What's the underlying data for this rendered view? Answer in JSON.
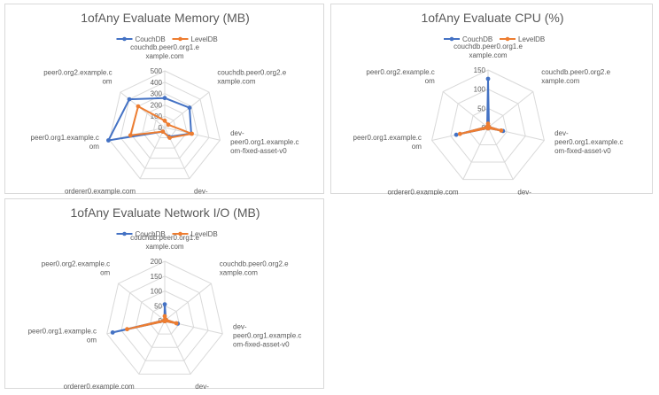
{
  "chart_data": [
    {
      "type": "radar",
      "title": "1ofAny Evaluate Memory (MB)",
      "categories": [
        "couchdb.peer0.org1.example.com",
        "couchdb.peer0.org2.example.com",
        "dev-peer0.org1.example.com-fixed-asset-v0",
        "dev-peer0.org2.example.com-fixed-asset-v0",
        "orderer0.example.com",
        "peer0.org1.example.com",
        "peer0.org2.example.com"
      ],
      "category_lines": [
        [
          "couchdb.peer0.org1.e",
          "xample.com"
        ],
        [
          "couchdb.peer0.org2.e",
          "xample.com"
        ],
        [
          "dev-",
          "peer0.org1.example.c",
          "om-fixed-asset-v0"
        ],
        [
          "dev-",
          "peer0.org2.example.c",
          "om-fixed-asset-v0"
        ],
        [
          "orderer0.example.com"
        ],
        [
          "peer0.org1.example.c",
          "om"
        ],
        [
          "peer0.org2.example.c",
          "om"
        ]
      ],
      "ticks": [
        "0",
        "100",
        "200",
        "300",
        "400",
        "500"
      ],
      "rmax": 500,
      "legend_position": "top",
      "series": [
        {
          "name": "CouchDB",
          "color": "#4472C4",
          "values": [
            260,
            280,
            240,
            90,
            40,
            510,
            400
          ]
        },
        {
          "name": "LevelDB",
          "color": "#ED7D31",
          "values": [
            60,
            40,
            245,
            100,
            40,
            310,
            300
          ]
        }
      ]
    },
    {
      "type": "radar",
      "title": "1ofAny Evaluate CPU (%)",
      "categories": [
        "couchdb.peer0.org1.example.com",
        "couchdb.peer0.org2.example.com",
        "dev-peer0.org1.example.com-fixed-asset-v0",
        "dev-peer0.org2.example.com-fixed-asset-v0",
        "orderer0.example.com",
        "peer0.org1.example.com",
        "peer0.org2.example.com"
      ],
      "category_lines": [
        [
          "couchdb.peer0.org1.e",
          "xample.com"
        ],
        [
          "couchdb.peer0.org2.e",
          "xample.com"
        ],
        [
          "dev-",
          "peer0.org1.example.c",
          "om-fixed-asset-v0"
        ],
        [
          "dev-",
          "peer0.org2.example.c",
          "om-fixed-asset-v0"
        ],
        [
          "orderer0.example.com"
        ],
        [
          "peer0.org1.example.c",
          "om"
        ],
        [
          "peer0.org2.example.c",
          "om"
        ]
      ],
      "ticks": [
        "0",
        "50",
        "100",
        "150"
      ],
      "rmax": 150,
      "legend_position": "top",
      "series": [
        {
          "name": "CouchDB",
          "color": "#4472C4",
          "values": [
            127,
            3,
            40,
            2,
            2,
            85,
            3
          ]
        },
        {
          "name": "LevelDB",
          "color": "#ED7D31",
          "values": [
            10,
            3,
            35,
            2,
            2,
            75,
            3
          ]
        }
      ]
    },
    {
      "type": "radar",
      "title": "1ofAny Evaluate Network I/O (MB)",
      "categories": [
        "couchdb.peer0.org1.example.com",
        "couchdb.peer0.org2.example.com",
        "dev-peer0.org1.example.com-fixed-asset-v0",
        "dev-peer0.org2.example.com-fixed-asset-v0",
        "orderer0.example.com",
        "peer0.org1.example.com",
        "peer0.org2.example.com"
      ],
      "category_lines": [
        [
          "couchdb.peer0.org1.e",
          "xample.com"
        ],
        [
          "couchdb.peer0.org2.e",
          "xample.com"
        ],
        [
          "dev-",
          "peer0.org1.example.c",
          "om-fixed-asset-v0"
        ],
        [
          "dev-",
          "peer0.org2.example.c",
          "om-fixed-asset-v0"
        ],
        [
          "orderer0.example.com"
        ],
        [
          "peer0.org1.example.c",
          "om"
        ],
        [
          "peer0.org2.example.c",
          "om"
        ]
      ],
      "ticks": [
        "0",
        "50",
        "100",
        "150",
        "200"
      ],
      "rmax": 200,
      "legend_position": "top",
      "series": [
        {
          "name": "CouchDB",
          "color": "#4472C4",
          "values": [
            55,
            5,
            45,
            2,
            2,
            180,
            2
          ]
        },
        {
          "name": "LevelDB",
          "color": "#ED7D31",
          "values": [
            15,
            5,
            40,
            2,
            2,
            130,
            2
          ]
        }
      ]
    }
  ]
}
